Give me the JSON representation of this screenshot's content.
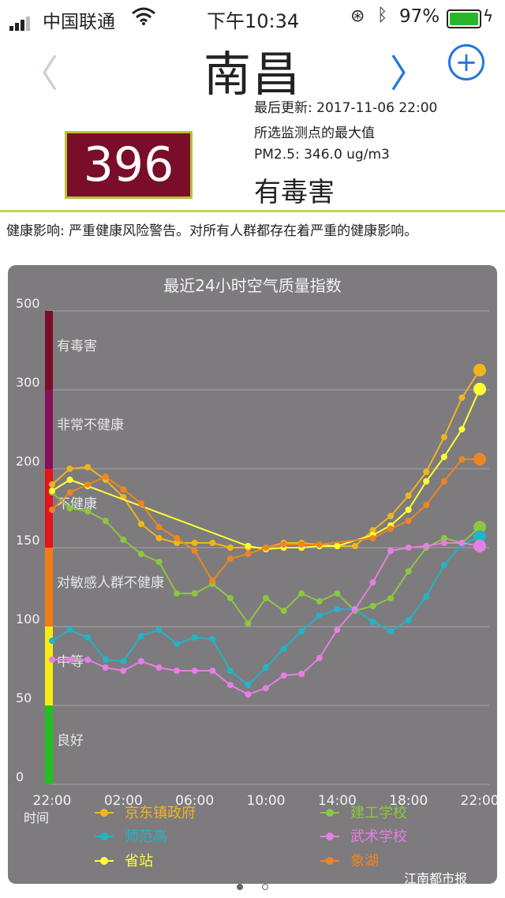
{
  "status_bar": {
    "carrier": "中国联通",
    "time": "下午10:34",
    "battery": "97%",
    "battery_level": 0.97
  },
  "header": {
    "city": "南昌",
    "back_icon": "chevron-left-icon",
    "next_icon": "chevron-right-icon",
    "add_icon": "plus-circle-icon",
    "next_color": "#2277dd"
  },
  "summary": {
    "aqi": "396",
    "aqi_bg_color": "#7a0e2a",
    "last_updated": "最后更新: 2017-11-06 22:00",
    "station_note": "所选监测点的最大值",
    "pm25": "PM2.5: 346.0 ug/m3",
    "level": "有毒害"
  },
  "health_effect": "健康影响: 严重健康风险警告。对所有人群都存在着严重的健康影响。",
  "watermark": "江南都市报",
  "chart_data": {
    "type": "line",
    "title": "最近24小时空气质量指数",
    "xlabel": "时间",
    "x_ticks": [
      "22:00",
      "02:00",
      "06:00",
      "10:00",
      "14:00",
      "18:00",
      "22:00"
    ],
    "x": [
      0,
      1,
      2,
      3,
      4,
      5,
      6,
      7,
      8,
      9,
      10,
      11,
      12,
      13,
      14,
      15,
      16,
      17,
      18,
      19,
      20,
      21,
      22,
      23,
      24
    ],
    "y_ticks": [
      0,
      50,
      100,
      150,
      200,
      300,
      500
    ],
    "y_tick_labels": [
      "0",
      "50",
      "100",
      "150",
      "200",
      "300",
      "500"
    ],
    "bands": [
      {
        "label": "良好",
        "color": "#22c01e",
        "from": 0,
        "to": 50
      },
      {
        "label": "中等",
        "color": "#f5ec14",
        "from": 50,
        "to": 100
      },
      {
        "label": "对敏感人群不健康",
        "color": "#f07d12",
        "from": 100,
        "to": 150
      },
      {
        "label": "不健康",
        "color": "#e3141a",
        "from": 150,
        "to": 200
      },
      {
        "label": "非常不健康",
        "color": "#880f5a",
        "from": 200,
        "to": 300
      },
      {
        "label": "有毒害",
        "color": "#7a0e2a",
        "from": 300,
        "to": 500
      }
    ],
    "series": [
      {
        "name": "京东镇政府",
        "color": "#f1b51c",
        "values": [
          190,
          200,
          202,
          193,
          182,
          165,
          156,
          153,
          153,
          153,
          150,
          150,
          150,
          153,
          153,
          152,
          151,
          151,
          161,
          170,
          183,
          198,
          240,
          290,
          350
        ]
      },
      {
        "name": "建工学校",
        "color": "#8dc63f",
        "values": [
          185,
          175,
          173,
          167,
          155,
          146,
          141,
          121,
          121,
          127,
          118,
          102,
          118,
          110,
          121,
          116,
          121,
          110,
          113,
          118,
          135,
          150,
          156,
          153,
          163
        ]
      },
      {
        "name": "师范高",
        "color": "#21b4c8",
        "values": [
          91,
          98,
          93,
          79,
          78,
          94,
          98,
          89,
          93,
          92,
          72,
          63,
          74,
          86,
          97,
          107,
          111,
          111,
          103,
          97,
          104,
          119,
          139,
          152,
          157
        ]
      },
      {
        "name": "武术学校",
        "color": "#e67ee4",
        "values": [
          79,
          79,
          79,
          74,
          72,
          78,
          74,
          72,
          72,
          72,
          63,
          57,
          61,
          69,
          70,
          80,
          98,
          111,
          128,
          148,
          150,
          151,
          153,
          153,
          151
        ]
      },
      {
        "name": "省站",
        "color": "#ffff33",
        "values": [
          186,
          193,
          189,
          null,
          null,
          null,
          null,
          null,
          null,
          null,
          null,
          151,
          149,
          150,
          150,
          151,
          151,
          null,
          158,
          164,
          174,
          192,
          215,
          250,
          302
        ]
      },
      {
        "name": "象湖",
        "color": "#ee8522",
        "values": [
          174,
          185,
          190,
          195,
          187,
          178,
          163,
          156,
          148,
          129,
          143,
          146,
          150,
          152,
          152,
          152,
          null,
          null,
          156,
          162,
          167,
          177,
          192,
          212,
          212
        ]
      }
    ]
  }
}
